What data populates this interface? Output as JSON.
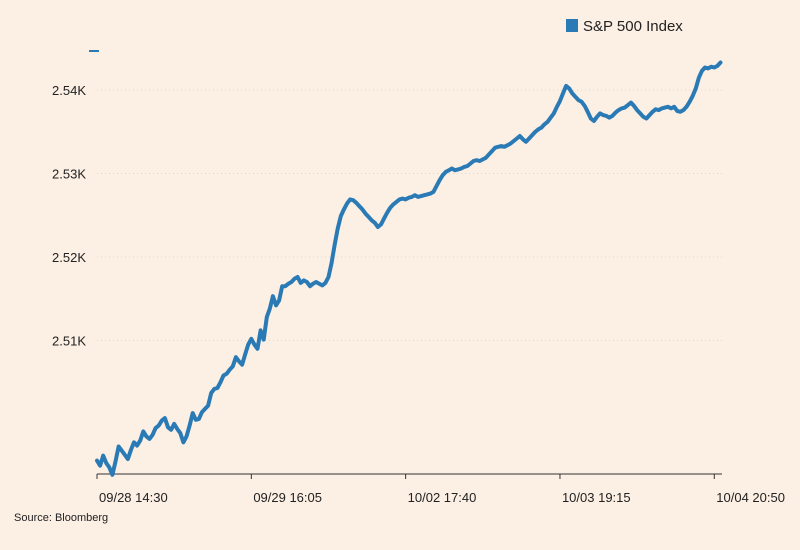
{
  "chart_data": {
    "type": "line",
    "title": "",
    "xlabel": "",
    "ylabel": "",
    "source": "Source: Bloomberg",
    "legend": {
      "placement": "top-right",
      "entries": [
        "S&P 500 Index"
      ]
    },
    "grid": {
      "horizontal": true,
      "vertical": false,
      "style": "dotted"
    },
    "ylim": [
      2494,
      2546
    ],
    "y_ticks": [
      2510,
      2520,
      2530,
      2540
    ],
    "y_tick_labels": [
      "2.51K",
      "2.52K",
      "2.53K",
      "2.54K"
    ],
    "x_tick_labels": [
      "09/28 14:30",
      "09/29 16:05",
      "10/02 17:40",
      "10/03 19:15",
      "10/04 20:50"
    ],
    "x_tick_positions": [
      0,
      100,
      200,
      300,
      400
    ],
    "xlim": [
      0,
      405
    ],
    "colors": {
      "line": "#2a7ab5",
      "background": "#fcefe4",
      "grid": "#e2d6cc",
      "axis": "#333333"
    },
    "series": [
      {
        "name": "S&P 500 Index",
        "points": [
          [
            0,
            2495.6
          ],
          [
            2,
            2495.0
          ],
          [
            4,
            2496.2
          ],
          [
            6,
            2495.3
          ],
          [
            8,
            2494.8
          ],
          [
            10,
            2493.9
          ],
          [
            12,
            2495.5
          ],
          [
            14,
            2497.3
          ],
          [
            16,
            2496.8
          ],
          [
            18,
            2496.3
          ],
          [
            20,
            2495.8
          ],
          [
            22,
            2496.9
          ],
          [
            24,
            2497.8
          ],
          [
            26,
            2497.4
          ],
          [
            28,
            2498.0
          ],
          [
            30,
            2499.1
          ],
          [
            32,
            2498.5
          ],
          [
            34,
            2498.2
          ],
          [
            36,
            2498.7
          ],
          [
            38,
            2499.5
          ],
          [
            40,
            2499.8
          ],
          [
            42,
            2500.4
          ],
          [
            44,
            2500.7
          ],
          [
            46,
            2499.6
          ],
          [
            48,
            2499.3
          ],
          [
            50,
            2500.0
          ],
          [
            52,
            2499.4
          ],
          [
            54,
            2498.9
          ],
          [
            56,
            2497.8
          ],
          [
            58,
            2498.5
          ],
          [
            60,
            2499.8
          ],
          [
            62,
            2501.3
          ],
          [
            64,
            2500.5
          ],
          [
            66,
            2500.6
          ],
          [
            68,
            2501.4
          ],
          [
            70,
            2501.8
          ],
          [
            72,
            2502.2
          ],
          [
            74,
            2503.7
          ],
          [
            76,
            2504.2
          ],
          [
            78,
            2504.3
          ],
          [
            80,
            2505.0
          ],
          [
            82,
            2505.8
          ],
          [
            84,
            2506.0
          ],
          [
            86,
            2506.5
          ],
          [
            88,
            2506.9
          ],
          [
            90,
            2508.0
          ],
          [
            92,
            2507.5
          ],
          [
            94,
            2507.1
          ],
          [
            96,
            2508.3
          ],
          [
            98,
            2509.5
          ],
          [
            100,
            2510.2
          ],
          [
            102,
            2509.5
          ],
          [
            104,
            2509.0
          ],
          [
            106,
            2511.2
          ],
          [
            108,
            2510.1
          ],
          [
            110,
            2512.8
          ],
          [
            112,
            2513.8
          ],
          [
            114,
            2515.3
          ],
          [
            116,
            2514.2
          ],
          [
            118,
            2514.8
          ],
          [
            120,
            2516.5
          ],
          [
            122,
            2516.5
          ],
          [
            124,
            2516.8
          ],
          [
            126,
            2517.0
          ],
          [
            128,
            2517.4
          ],
          [
            130,
            2517.6
          ],
          [
            132,
            2516.9
          ],
          [
            134,
            2517.2
          ],
          [
            136,
            2517.0
          ],
          [
            138,
            2516.5
          ],
          [
            140,
            2516.8
          ],
          [
            142,
            2517.0
          ],
          [
            144,
            2516.8
          ],
          [
            146,
            2516.6
          ],
          [
            148,
            2516.9
          ],
          [
            150,
            2517.6
          ],
          [
            152,
            2519.3
          ],
          [
            154,
            2521.5
          ],
          [
            156,
            2523.4
          ],
          [
            158,
            2524.9
          ],
          [
            160,
            2525.7
          ],
          [
            162,
            2526.4
          ],
          [
            164,
            2526.9
          ],
          [
            166,
            2526.8
          ],
          [
            168,
            2526.5
          ],
          [
            170,
            2526.1
          ],
          [
            172,
            2525.7
          ],
          [
            174,
            2525.2
          ],
          [
            176,
            2524.8
          ],
          [
            178,
            2524.4
          ],
          [
            180,
            2524.1
          ],
          [
            182,
            2523.6
          ],
          [
            184,
            2523.9
          ],
          [
            186,
            2524.6
          ],
          [
            188,
            2525.3
          ],
          [
            190,
            2525.9
          ],
          [
            192,
            2526.3
          ],
          [
            194,
            2526.6
          ],
          [
            196,
            2526.9
          ],
          [
            198,
            2527.0
          ],
          [
            200,
            2526.9
          ],
          [
            202,
            2527.1
          ],
          [
            204,
            2527.2
          ],
          [
            206,
            2527.4
          ],
          [
            208,
            2527.2
          ],
          [
            210,
            2527.3
          ],
          [
            212,
            2527.4
          ],
          [
            214,
            2527.5
          ],
          [
            216,
            2527.6
          ],
          [
            218,
            2527.8
          ],
          [
            220,
            2528.5
          ],
          [
            222,
            2529.2
          ],
          [
            224,
            2529.8
          ],
          [
            226,
            2530.2
          ],
          [
            228,
            2530.4
          ],
          [
            230,
            2530.6
          ],
          [
            232,
            2530.4
          ],
          [
            234,
            2530.5
          ],
          [
            236,
            2530.6
          ],
          [
            238,
            2530.8
          ],
          [
            240,
            2530.9
          ],
          [
            242,
            2531.2
          ],
          [
            244,
            2531.5
          ],
          [
            246,
            2531.6
          ],
          [
            248,
            2531.5
          ],
          [
            250,
            2531.7
          ],
          [
            252,
            2531.9
          ],
          [
            254,
            2532.3
          ],
          [
            256,
            2532.7
          ],
          [
            258,
            2533.1
          ],
          [
            260,
            2533.2
          ],
          [
            262,
            2533.3
          ],
          [
            264,
            2533.2
          ],
          [
            266,
            2533.4
          ],
          [
            268,
            2533.6
          ],
          [
            270,
            2533.9
          ],
          [
            272,
            2534.2
          ],
          [
            274,
            2534.5
          ],
          [
            276,
            2534.1
          ],
          [
            278,
            2533.8
          ],
          [
            280,
            2534.2
          ],
          [
            282,
            2534.6
          ],
          [
            284,
            2535.0
          ],
          [
            286,
            2535.3
          ],
          [
            288,
            2535.5
          ],
          [
            290,
            2535.9
          ],
          [
            292,
            2536.2
          ],
          [
            294,
            2536.7
          ],
          [
            296,
            2537.2
          ],
          [
            298,
            2538.0
          ],
          [
            300,
            2538.7
          ],
          [
            302,
            2539.6
          ],
          [
            304,
            2540.5
          ],
          [
            306,
            2540.2
          ],
          [
            308,
            2539.6
          ],
          [
            310,
            2539.2
          ],
          [
            312,
            2538.8
          ],
          [
            314,
            2538.6
          ],
          [
            316,
            2538.1
          ],
          [
            318,
            2537.4
          ],
          [
            320,
            2536.6
          ],
          [
            322,
            2536.3
          ],
          [
            324,
            2536.8
          ],
          [
            326,
            2537.2
          ],
          [
            328,
            2537.0
          ],
          [
            330,
            2536.9
          ],
          [
            332,
            2536.7
          ],
          [
            334,
            2536.9
          ],
          [
            336,
            2537.3
          ],
          [
            338,
            2537.6
          ],
          [
            340,
            2537.8
          ],
          [
            342,
            2537.9
          ],
          [
            344,
            2538.2
          ],
          [
            346,
            2538.5
          ],
          [
            348,
            2538.1
          ],
          [
            350,
            2537.6
          ],
          [
            352,
            2537.2
          ],
          [
            354,
            2536.8
          ],
          [
            356,
            2536.6
          ],
          [
            358,
            2537.0
          ],
          [
            360,
            2537.4
          ],
          [
            362,
            2537.7
          ],
          [
            364,
            2537.6
          ],
          [
            366,
            2537.8
          ],
          [
            368,
            2537.9
          ],
          [
            370,
            2538.0
          ],
          [
            372,
            2537.8
          ],
          [
            374,
            2538.0
          ],
          [
            376,
            2537.5
          ],
          [
            378,
            2537.4
          ],
          [
            380,
            2537.6
          ],
          [
            382,
            2538.0
          ],
          [
            384,
            2538.6
          ],
          [
            386,
            2539.3
          ],
          [
            388,
            2540.2
          ],
          [
            390,
            2541.5
          ],
          [
            392,
            2542.3
          ],
          [
            394,
            2542.7
          ],
          [
            396,
            2542.6
          ],
          [
            398,
            2542.8
          ],
          [
            400,
            2542.7
          ],
          [
            402,
            2542.9
          ],
          [
            404,
            2543.3
          ]
        ]
      }
    ]
  }
}
